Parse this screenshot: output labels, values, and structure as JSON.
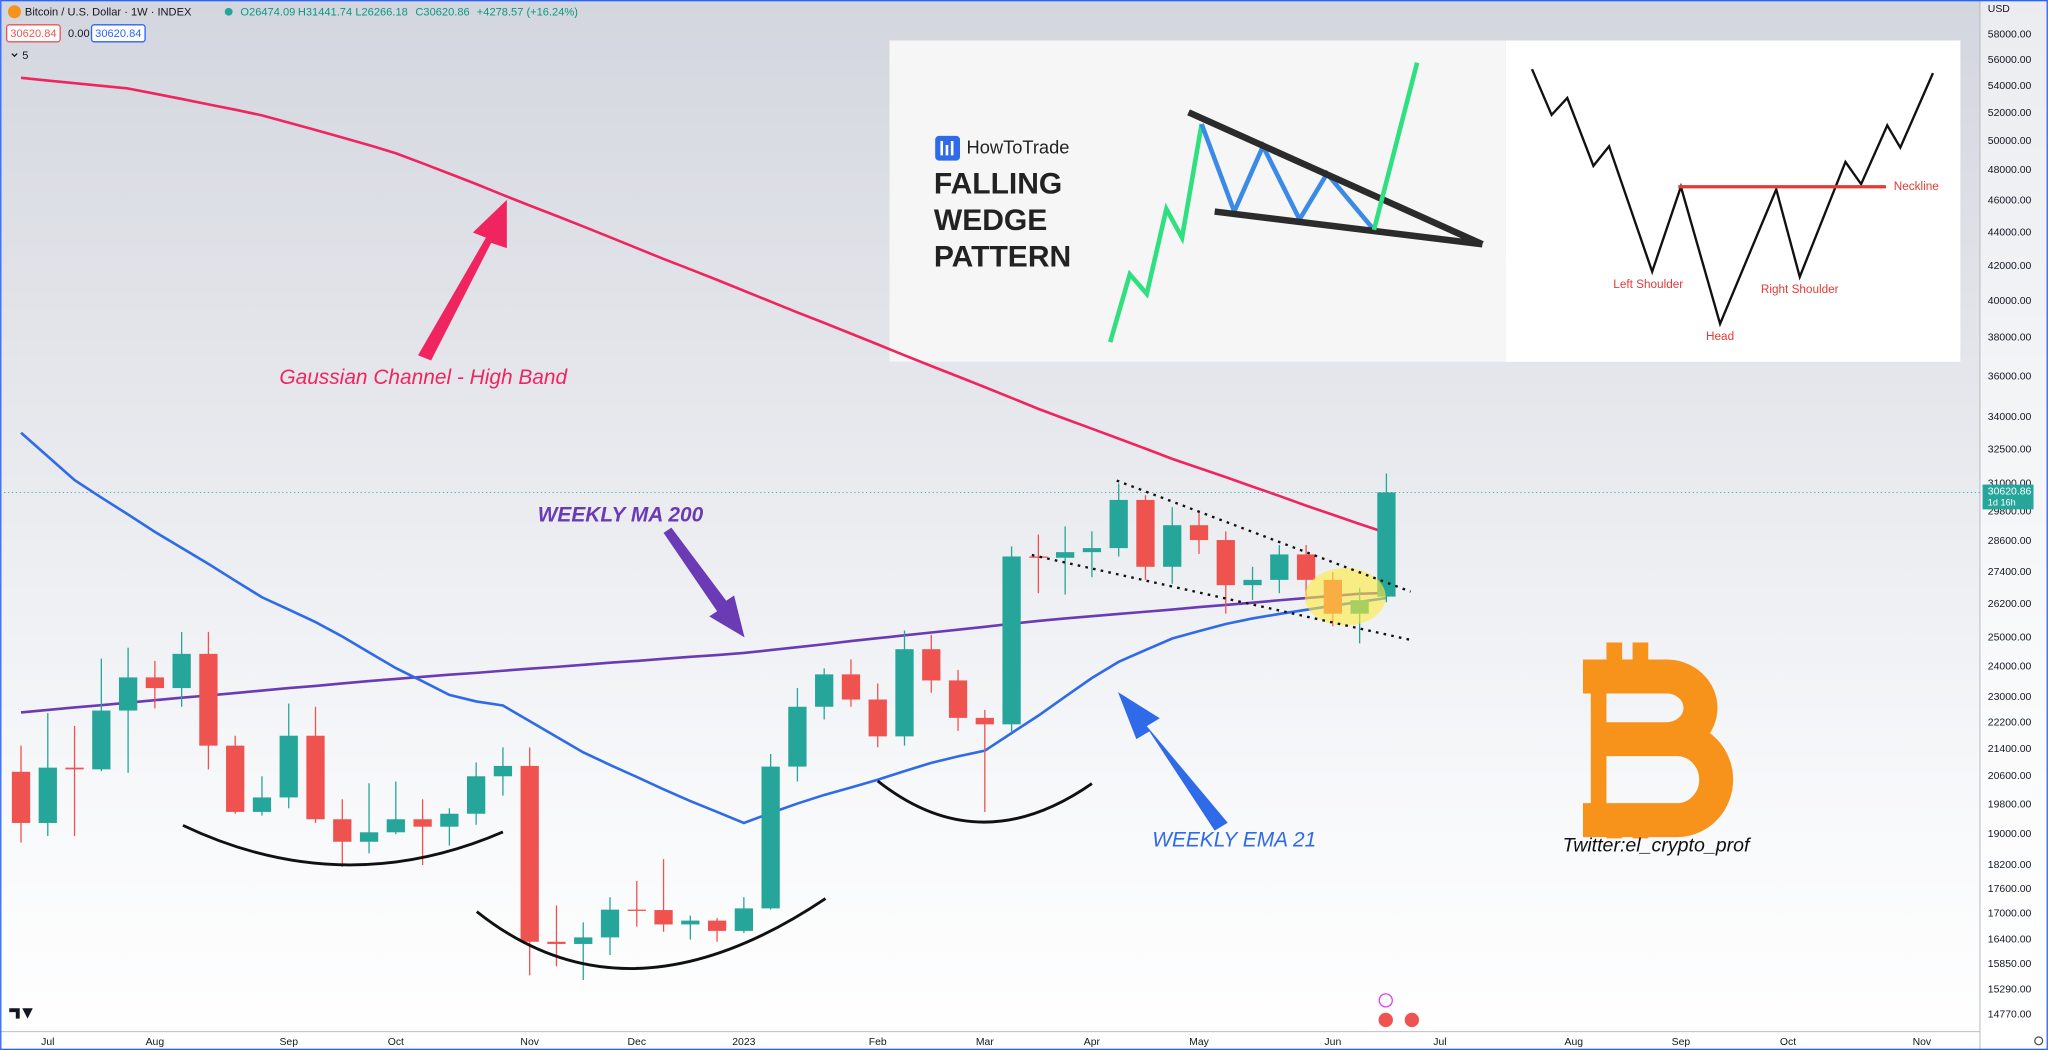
{
  "header": {
    "symbol": "Bitcoin / U.S. Dollar · 1W · INDEX",
    "readout": [
      "O26474.09",
      "H31441.74",
      "L26266.18",
      "C30620.86"
    ],
    "change": "+4278.57 (+16.24%)",
    "sell": "30620.84",
    "spread": "0.00",
    "buy": "30620.84",
    "indicators": "5"
  },
  "chart_data": {
    "type": "candlestick",
    "categories": [
      null,
      "Jul",
      null,
      null,
      null,
      "Aug",
      null,
      null,
      null,
      null,
      "Sep",
      null,
      null,
      null,
      "Oct",
      null,
      null,
      null,
      null,
      "Nov",
      null,
      null,
      null,
      "Dec",
      null,
      null,
      null,
      "2023",
      null,
      null,
      null,
      null,
      "Feb",
      null,
      null,
      null,
      "Mar",
      null,
      null,
      null,
      "Apr",
      null,
      null,
      null,
      "May",
      null,
      null,
      null,
      null,
      "Jun",
      null,
      null,
      null,
      "Jul",
      null,
      null,
      null,
      null,
      "Aug",
      null,
      null,
      null,
      "Sep",
      null,
      null,
      null,
      "Oct",
      null,
      null,
      null,
      null,
      "Nov",
      null,
      null
    ],
    "open": [
      20730,
      19300,
      20850,
      20800,
      22580,
      23650,
      23300,
      24440,
      21500,
      19600,
      20000,
      21800,
      19400,
      18800,
      19050,
      19400,
      19200,
      19550,
      20600,
      20900,
      16350,
      16300,
      16450,
      17100,
      17090,
      16750,
      16840,
      16600,
      17130,
      20880,
      22700,
      23750,
      22930,
      21780,
      24600,
      23550,
      22350,
      22150,
      28000,
      27950,
      28170,
      28330,
      30300,
      27600,
      29250,
      28650,
      26900,
      27100,
      28080,
      27100,
      25850,
      26474.09,
      null,
      null,
      null,
      null,
      null,
      null,
      null,
      null,
      null,
      null,
      null,
      null,
      null,
      null,
      null,
      null,
      null,
      null,
      null,
      null,
      null,
      null
    ],
    "high": [
      21500,
      22500,
      22100,
      24280,
      24650,
      24200,
      25200,
      25200,
      21800,
      20600,
      22800,
      22700,
      19950,
      20400,
      20450,
      19950,
      19700,
      21000,
      21450,
      21450,
      17200,
      16800,
      17400,
      17800,
      18350,
      16960,
      16900,
      17400,
      21250,
      23300,
      23950,
      24250,
      23450,
      25250,
      25100,
      23900,
      22600,
      28400,
      28870,
      29200,
      29000,
      31000,
      30500,
      30000,
      29800,
      29000,
      27600,
      28450,
      28450,
      27400,
      26800,
      31441.74,
      null,
      null,
      null,
      null,
      null,
      null,
      null,
      null,
      null,
      null,
      null,
      null,
      null,
      null,
      null,
      null,
      null,
      null,
      null,
      null,
      null,
      null
    ],
    "low": [
      18780,
      18950,
      18950,
      20750,
      20700,
      22650,
      22700,
      20800,
      19550,
      19500,
      19700,
      19300,
      18150,
      18500,
      19000,
      18200,
      18700,
      19250,
      20050,
      15600,
      15800,
      15500,
      16050,
      16700,
      16580,
      16400,
      16350,
      16550,
      17100,
      20450,
      22300,
      22700,
      21450,
      21500,
      23150,
      21950,
      19600,
      21900,
      26600,
      26550,
      27200,
      28000,
      27100,
      26950,
      28100,
      25850,
      26350,
      26600,
      26500,
      25400,
      24800,
      26266.18,
      null,
      null,
      null,
      null,
      null,
      null,
      null,
      null,
      null,
      null,
      null,
      null,
      null,
      null,
      null,
      null,
      null,
      null,
      null,
      null,
      null,
      null
    ],
    "close": [
      19300,
      20850,
      20800,
      22580,
      23650,
      23300,
      24440,
      21500,
      19600,
      20000,
      21800,
      19400,
      18800,
      19050,
      19400,
      19200,
      19550,
      20600,
      20900,
      16350,
      16300,
      16450,
      17100,
      17090,
      16750,
      16840,
      16600,
      17130,
      20880,
      22700,
      23750,
      22930,
      21780,
      24600,
      23550,
      22350,
      22150,
      28000,
      27950,
      28170,
      28330,
      30300,
      27600,
      29250,
      28650,
      26900,
      27100,
      28080,
      27100,
      25850,
      26342.29,
      30620.86,
      null,
      null,
      null,
      null,
      null,
      null,
      null,
      null,
      null,
      null,
      null,
      null,
      null,
      null,
      null,
      null,
      null,
      null,
      null,
      null,
      null,
      null
    ],
    "up_color": "#26a69a",
    "down_color": "#ef5350",
    "ylim": [
      14420,
      60900
    ],
    "log_scale": true,
    "grid": false,
    "y_unit": "USD",
    "yticks": [
      {
        "value": 58000,
        "label": "58000.00"
      },
      {
        "value": 56000,
        "label": "56000.00"
      },
      {
        "value": 54000,
        "label": "54000.00"
      },
      {
        "value": 52000,
        "label": "52000.00"
      },
      {
        "value": 50000,
        "label": "50000.00"
      },
      {
        "value": 48000,
        "label": "48000.00"
      },
      {
        "value": 46000,
        "label": "46000.00"
      },
      {
        "value": 44000,
        "label": "44000.00"
      },
      {
        "value": 42000,
        "label": "42000.00"
      },
      {
        "value": 40000,
        "label": "40000.00"
      },
      {
        "value": 38000,
        "label": "38000.00"
      },
      {
        "value": 36000,
        "label": "36000.00"
      },
      {
        "value": 34000,
        "label": "34000.00"
      },
      {
        "value": 32500,
        "label": "32500.00"
      },
      {
        "value": 31000,
        "label": "31000.00"
      },
      {
        "value": 29800,
        "label": "29800.00"
      },
      {
        "value": 28600,
        "label": "28600.00"
      },
      {
        "value": 27400,
        "label": "27400.00"
      },
      {
        "value": 26200,
        "label": "26200.00"
      },
      {
        "value": 25000,
        "label": "25000.00"
      },
      {
        "value": 24000,
        "label": "24000.00"
      },
      {
        "value": 23000,
        "label": "23000.00"
      },
      {
        "value": 22200,
        "label": "22200.00"
      },
      {
        "value": 21400,
        "label": "21400.00"
      },
      {
        "value": 20600,
        "label": "20600.00"
      },
      {
        "value": 19800,
        "label": "19800.00"
      },
      {
        "value": 19000,
        "label": "19000.00"
      },
      {
        "value": 18200,
        "label": "18200.00"
      },
      {
        "value": 17600,
        "label": "17600.00"
      },
      {
        "value": 17000,
        "label": "17000.00"
      },
      {
        "value": 16400,
        "label": "16400.00"
      },
      {
        "value": 15850,
        "label": "15850.00"
      },
      {
        "value": 15290,
        "label": "15290.00"
      },
      {
        "value": 14770,
        "label": "14770.00"
      }
    ],
    "price_tag": {
      "label": "30620.86",
      "countdown": "1d 16h"
    },
    "overlays": [
      {
        "type": "line",
        "name": "Gaussian Channel - High Band",
        "color": "#f0245f",
        "values": [
          54630,
          54420,
          54220,
          54020,
          53820,
          53430,
          53040,
          52640,
          52250,
          51840,
          51320,
          50790,
          50260,
          49730,
          49170,
          48480,
          47790,
          47100,
          46390,
          45710,
          45050,
          44390,
          43730,
          43070,
          42420,
          41810,
          41200,
          40580,
          39970,
          39370,
          38800,
          38220,
          37650,
          37080,
          36530,
          36000,
          35470,
          34940,
          34410,
          33930,
          33470,
          33010,
          32550,
          32090,
          31680,
          31280,
          30870,
          30470,
          30060,
          29680,
          29300,
          28940,
          null,
          null,
          null,
          null,
          null,
          null,
          null,
          null,
          null,
          null,
          null,
          null,
          null,
          null,
          null,
          null,
          null,
          null,
          null,
          null,
          null,
          null
        ]
      },
      {
        "type": "line",
        "name": "WEEKLY MA 200",
        "color": "#6a3bb5",
        "values": [
          22520,
          22600,
          22680,
          22750,
          22830,
          22910,
          22990,
          23060,
          23140,
          23220,
          23300,
          23370,
          23450,
          23530,
          23600,
          23670,
          23740,
          23800,
          23870,
          23940,
          24000,
          24070,
          24140,
          24200,
          24270,
          24340,
          24400,
          24470,
          24570,
          24670,
          24770,
          24880,
          24980,
          25080,
          25180,
          25280,
          25380,
          25490,
          25590,
          25680,
          25760,
          25840,
          25920,
          26000,
          26090,
          26170,
          26250,
          26340,
          26420,
          26500,
          26580,
          26610,
          null,
          null,
          null,
          null,
          null,
          null,
          null,
          null,
          null,
          null,
          null,
          null,
          null,
          null,
          null,
          null,
          null,
          null,
          null,
          null,
          null,
          null
        ]
      },
      {
        "type": "line",
        "name": "WEEKLY EMA 21",
        "color": "#2f6ae8",
        "values": [
          33280,
          32200,
          31150,
          30400,
          29690,
          28980,
          28340,
          27710,
          27070,
          26450,
          26000,
          25550,
          25040,
          24490,
          23960,
          23520,
          23080,
          22870,
          22740,
          22250,
          21770,
          21300,
          20930,
          20580,
          20230,
          19900,
          19600,
          19300,
          19570,
          19830,
          20070,
          20280,
          20500,
          20750,
          20990,
          21180,
          21350,
          21880,
          22420,
          23020,
          23630,
          24170,
          24570,
          24970,
          25230,
          25480,
          25680,
          25840,
          25990,
          26140,
          26280,
          26420,
          null,
          null,
          null,
          null,
          null,
          null,
          null,
          null,
          null,
          null,
          null,
          null,
          null,
          null,
          null,
          null,
          null,
          null,
          null,
          null,
          null,
          null
        ]
      }
    ],
    "annotation": "Twitter:el_crypto_prof"
  },
  "insets": {
    "wedge": {
      "brand": "HowToTrade",
      "title_lines": [
        "FALLING",
        "WEDGE",
        "PATTERN"
      ]
    },
    "head_shoulders": {
      "neckline": "Neckline",
      "left_shoulder": "Left Shoulder",
      "right_shoulder": "Right Shoulder",
      "head": "Head"
    }
  }
}
